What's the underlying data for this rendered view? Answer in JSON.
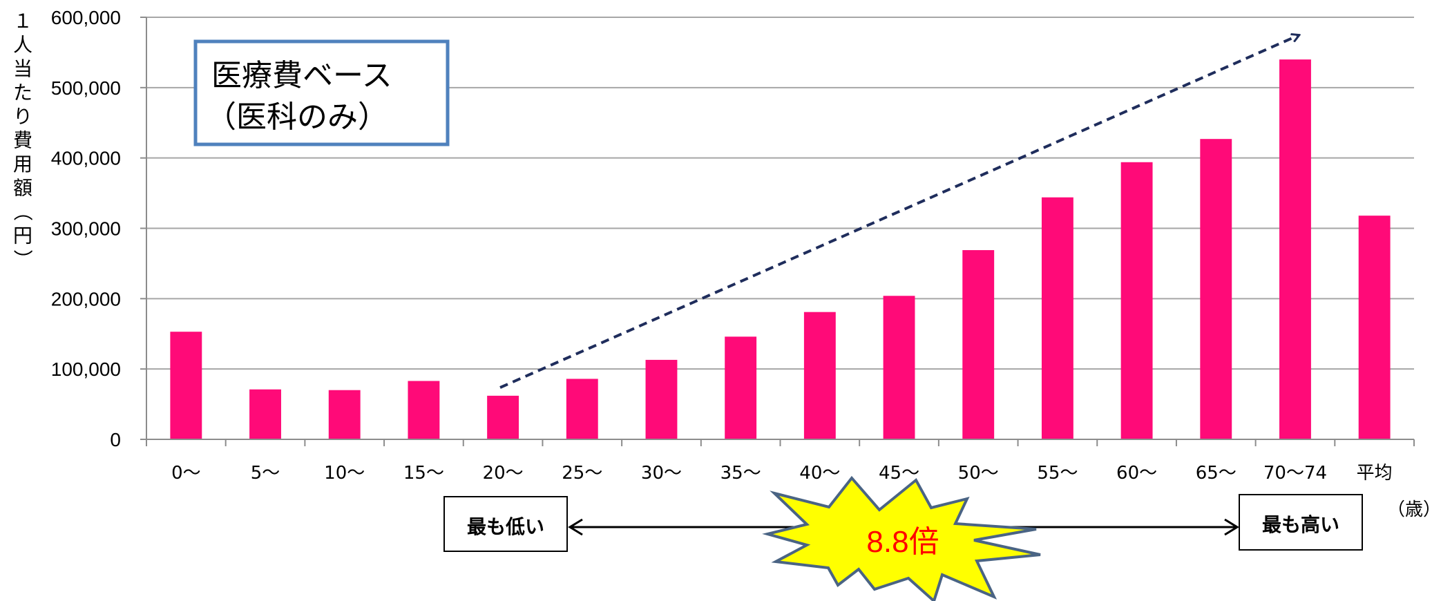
{
  "chart_data": {
    "type": "bar",
    "title": "医療費ベース",
    "subtitle": "（医科のみ）",
    "ylabel": "１人当たり費用額（円）",
    "xunit": "（歳）",
    "categories": [
      "0〜",
      "5〜",
      "10〜",
      "15〜",
      "20〜",
      "25〜",
      "30〜",
      "35〜",
      "40〜",
      "45〜",
      "50〜",
      "55〜",
      "60〜",
      "65〜",
      "70〜74",
      "平均"
    ],
    "values": [
      153000,
      71000,
      70000,
      83000,
      62000,
      86000,
      113000,
      146000,
      181000,
      204000,
      269000,
      344000,
      394000,
      427000,
      540000,
      318000
    ],
    "ylim": [
      0,
      600000
    ],
    "yticks": [
      0,
      100000,
      200000,
      300000,
      400000,
      500000,
      600000
    ],
    "ytick_labels": [
      "0",
      "100,000",
      "200,000",
      "300,000",
      "400,000",
      "500,000",
      "600,000"
    ],
    "grid": true,
    "bar_color": "#ff0a78"
  },
  "annotations": {
    "lowest": "最も低い",
    "highest": "最も高い",
    "ratio": "8.8倍"
  },
  "colors": {
    "bar": "#ff0a78",
    "grid": "#a6a6a6",
    "title_box_border": "#4f81bd",
    "trend_arrow": "#1f2d5c",
    "burst_fill": "#ffff00",
    "burst_stroke": "#4a6484",
    "ratio_text": "#ff0000"
  }
}
